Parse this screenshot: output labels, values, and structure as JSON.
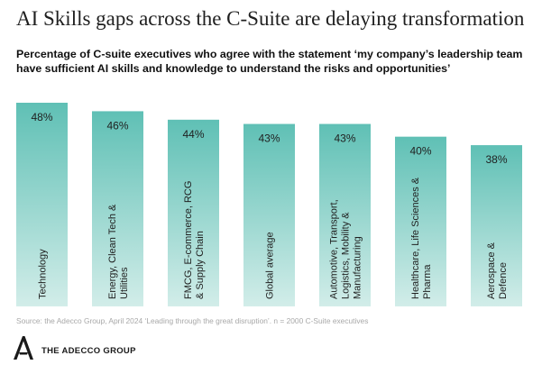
{
  "header": {
    "title": "AI Skills gaps across the C-Suite are delaying transformation",
    "subtitle": "Percentage of C-suite executives who agree with the statement ‘my company’s leadership team have sufficient AI skills and knowledge to understand the risks and opportunities’"
  },
  "chart_data": {
    "type": "bar",
    "categories": [
      [
        "Technology"
      ],
      [
        "Energy, Clean Tech &",
        "Utilities"
      ],
      [
        "FMCG, E-commerce, RCG",
        "& Supply Chain"
      ],
      [
        "Global average"
      ],
      [
        "Automotive, Transport,",
        "Logistics, Mobility &",
        "Manufacturing"
      ],
      [
        "Healthcare, Life Sciences &",
        "Pharma"
      ],
      [
        "Aerospace &",
        "Defence"
      ]
    ],
    "values": [
      48,
      46,
      44,
      43,
      43,
      40,
      38
    ],
    "value_labels": [
      "48%",
      "46%",
      "44%",
      "43%",
      "43%",
      "40%",
      "38%"
    ],
    "title": "",
    "xlabel": "",
    "ylabel": "",
    "ylim": [
      0,
      48
    ],
    "grid": false,
    "bar_color_top": "#5fc0b5",
    "bar_color_bottom": "#d2ede9"
  },
  "footer": {
    "source": "Source: the Adecco Group, April 2024 ‘Leading through the great disruption’. n = 2000 C-Suite executives",
    "brand": "THE ADECCO GROUP"
  },
  "icons": {
    "logo": "adecco-a-logo-icon"
  },
  "colors": {
    "text": "#1f1f1f",
    "source_text": "#a8a8a8"
  }
}
